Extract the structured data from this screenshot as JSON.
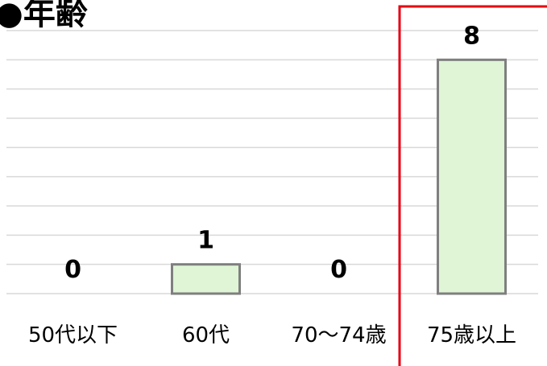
{
  "title": "●年齢",
  "chart_data": {
    "type": "bar",
    "title": "年齢",
    "categories": [
      "50代以下",
      "60代",
      "70〜74歳",
      "75歳以上"
    ],
    "values": [
      0,
      1,
      0,
      8
    ],
    "xlabel": "",
    "ylabel": "",
    "ylim": [
      0,
      9
    ],
    "grid": true,
    "legend": "none",
    "show_data_labels": true,
    "highlight_category": "75歳以上"
  },
  "colors": {
    "bar_fill": "#dff5d6",
    "bar_stroke": "#7f7f7f",
    "grid": "#d9d9d9",
    "highlight_border": "#e60012",
    "text": "#000000"
  }
}
